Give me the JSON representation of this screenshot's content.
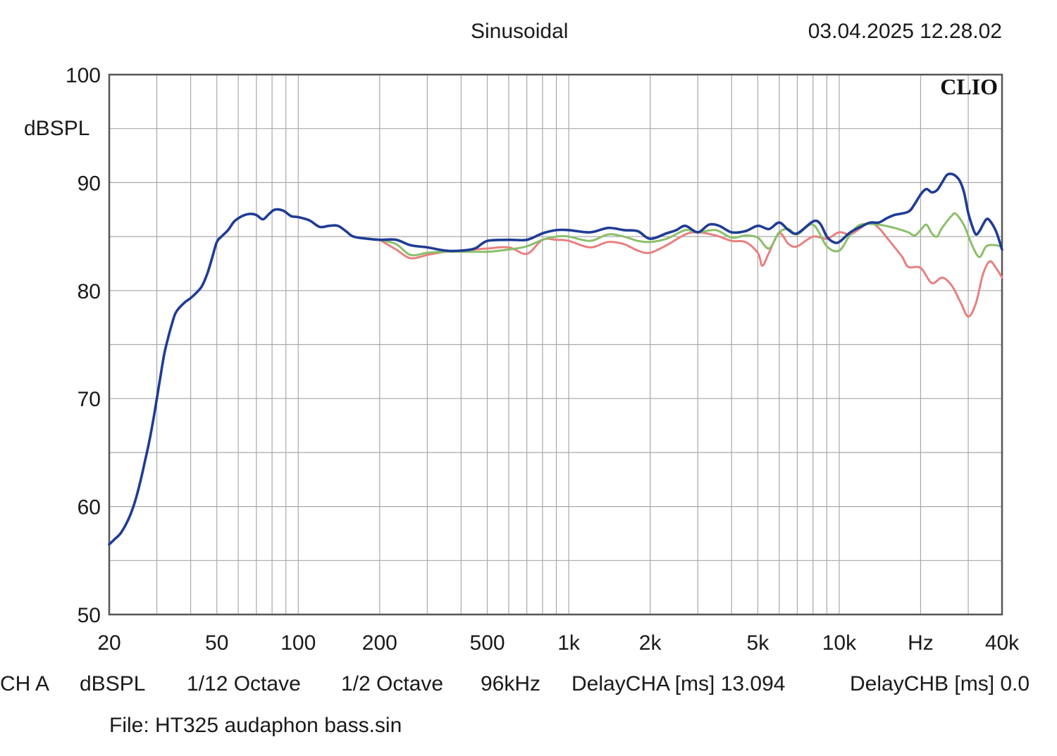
{
  "header": {
    "title": "Sinusoidal",
    "datetime": "03.04.2025 12.28.02"
  },
  "footer": {
    "channel": "CH A",
    "unit": "dBSPL",
    "smoothing": "1/12 Octave",
    "resolution": "1/2 Octave",
    "sample_rate": "96kHz",
    "delay_cha": "DelayCHA [ms] 13.094",
    "delay_chb": "DelayCHB [ms] 0.0",
    "file": "File: HT325 audaphon bass.sin"
  },
  "brand": "CLIO",
  "chart_data": {
    "type": "line",
    "title": "Sinusoidal",
    "xlabel": "Hz",
    "ylabel": "dBSPL",
    "xscale": "log",
    "xlim": [
      20,
      40000
    ],
    "ylim": [
      50,
      100
    ],
    "grid": true,
    "x_ticks": [
      {
        "v": 20,
        "label": "20"
      },
      {
        "v": 50,
        "label": "50"
      },
      {
        "v": 100,
        "label": "100"
      },
      {
        "v": 200,
        "label": "200"
      },
      {
        "v": 500,
        "label": "500"
      },
      {
        "v": 1000,
        "label": "1k"
      },
      {
        "v": 2000,
        "label": "2k"
      },
      {
        "v": 5000,
        "label": "5k"
      },
      {
        "v": 10000,
        "label": "10k"
      },
      {
        "v": 20000,
        "label": "Hz"
      },
      {
        "v": 40000,
        "label": "40k"
      }
    ],
    "y_ticks": [
      {
        "v": 100,
        "label": "100"
      },
      {
        "v": 90,
        "label": "90"
      },
      {
        "v": 80,
        "label": "80"
      },
      {
        "v": 70,
        "label": "70"
      },
      {
        "v": 60,
        "label": "60"
      },
      {
        "v": 50,
        "label": "50"
      }
    ],
    "series": [
      {
        "name": "red",
        "color": "#e88080",
        "points": [
          [
            200,
            84.7
          ],
          [
            230,
            83.8
          ],
          [
            260,
            83.0
          ],
          [
            300,
            83.3
          ],
          [
            350,
            83.6
          ],
          [
            400,
            83.7
          ],
          [
            500,
            83.9
          ],
          [
            600,
            84.0
          ],
          [
            700,
            83.4
          ],
          [
            800,
            84.7
          ],
          [
            900,
            84.7
          ],
          [
            1000,
            84.6
          ],
          [
            1200,
            84.0
          ],
          [
            1400,
            84.5
          ],
          [
            1600,
            84.3
          ],
          [
            1800,
            83.7
          ],
          [
            2000,
            83.5
          ],
          [
            2300,
            84.2
          ],
          [
            2700,
            85.2
          ],
          [
            3000,
            85.4
          ],
          [
            3500,
            85.1
          ],
          [
            4000,
            84.6
          ],
          [
            4500,
            84.5
          ],
          [
            5000,
            83.5
          ],
          [
            5200,
            82.3
          ],
          [
            5500,
            83.5
          ],
          [
            6000,
            85.3
          ],
          [
            6500,
            84.3
          ],
          [
            7000,
            84.1
          ],
          [
            8000,
            85.0
          ],
          [
            9000,
            84.8
          ],
          [
            10000,
            85.4
          ],
          [
            11000,
            85.2
          ],
          [
            12000,
            85.8
          ],
          [
            13000,
            86.3
          ],
          [
            14000,
            85.8
          ],
          [
            15000,
            84.9
          ],
          [
            17000,
            83.2
          ],
          [
            18000,
            82.2
          ],
          [
            20000,
            82.1
          ],
          [
            22000,
            80.7
          ],
          [
            24000,
            81.2
          ],
          [
            26000,
            80.5
          ],
          [
            28000,
            79.0
          ],
          [
            30000,
            77.6
          ],
          [
            32000,
            78.8
          ],
          [
            34000,
            81.5
          ],
          [
            36000,
            82.7
          ],
          [
            38000,
            82.1
          ],
          [
            40000,
            81.2
          ]
        ]
      },
      {
        "name": "green",
        "color": "#8bbf6a",
        "points": [
          [
            200,
            84.7
          ],
          [
            230,
            84.3
          ],
          [
            260,
            83.3
          ],
          [
            300,
            83.5
          ],
          [
            350,
            83.6
          ],
          [
            400,
            83.6
          ],
          [
            500,
            83.6
          ],
          [
            600,
            83.8
          ],
          [
            700,
            84.1
          ],
          [
            800,
            84.7
          ],
          [
            900,
            85.0
          ],
          [
            1000,
            85.0
          ],
          [
            1200,
            84.6
          ],
          [
            1400,
            85.2
          ],
          [
            1600,
            85.0
          ],
          [
            1800,
            84.6
          ],
          [
            2000,
            84.5
          ],
          [
            2300,
            84.8
          ],
          [
            2700,
            85.6
          ],
          [
            3000,
            85.4
          ],
          [
            3500,
            85.6
          ],
          [
            4000,
            84.9
          ],
          [
            4500,
            85.1
          ],
          [
            5000,
            84.9
          ],
          [
            5500,
            83.9
          ],
          [
            6000,
            85.4
          ],
          [
            6500,
            85.7
          ],
          [
            7000,
            85.2
          ],
          [
            8000,
            86.1
          ],
          [
            9000,
            84.1
          ],
          [
            10000,
            83.7
          ],
          [
            11000,
            85.2
          ],
          [
            12000,
            86.1
          ],
          [
            14000,
            86.1
          ],
          [
            16000,
            85.8
          ],
          [
            18000,
            85.4
          ],
          [
            19000,
            85.1
          ],
          [
            20000,
            85.6
          ],
          [
            21000,
            86.1
          ],
          [
            22000,
            85.3
          ],
          [
            23000,
            85.0
          ],
          [
            24000,
            85.8
          ],
          [
            26000,
            86.9
          ],
          [
            27000,
            87.1
          ],
          [
            29000,
            86.0
          ],
          [
            31000,
            84.2
          ],
          [
            33000,
            83.1
          ],
          [
            35000,
            84.1
          ],
          [
            38000,
            84.2
          ],
          [
            40000,
            84.0
          ]
        ]
      },
      {
        "name": "blue",
        "color": "#1f3c94",
        "points": [
          [
            20,
            56.5
          ],
          [
            21,
            57.0
          ],
          [
            22,
            57.5
          ],
          [
            23,
            58.3
          ],
          [
            24,
            59.3
          ],
          [
            25,
            60.6
          ],
          [
            26,
            62.2
          ],
          [
            27,
            64.0
          ],
          [
            28,
            65.8
          ],
          [
            29,
            67.8
          ],
          [
            30,
            70.0
          ],
          [
            31,
            72.2
          ],
          [
            32,
            74.2
          ],
          [
            33,
            75.6
          ],
          [
            34,
            76.8
          ],
          [
            35,
            77.8
          ],
          [
            36,
            78.3
          ],
          [
            38,
            78.9
          ],
          [
            40,
            79.3
          ],
          [
            42,
            79.8
          ],
          [
            44,
            80.4
          ],
          [
            46,
            81.5
          ],
          [
            48,
            83.0
          ],
          [
            50,
            84.5
          ],
          [
            52,
            85.0
          ],
          [
            55,
            85.6
          ],
          [
            58,
            86.4
          ],
          [
            62,
            86.9
          ],
          [
            66,
            87.1
          ],
          [
            70,
            87.0
          ],
          [
            74,
            86.6
          ],
          [
            78,
            87.1
          ],
          [
            82,
            87.5
          ],
          [
            88,
            87.4
          ],
          [
            94,
            86.9
          ],
          [
            100,
            86.8
          ],
          [
            110,
            86.5
          ],
          [
            120,
            85.9
          ],
          [
            130,
            86.0
          ],
          [
            140,
            86.0
          ],
          [
            150,
            85.5
          ],
          [
            160,
            85.0
          ],
          [
            180,
            84.8
          ],
          [
            200,
            84.7
          ],
          [
            230,
            84.7
          ],
          [
            260,
            84.2
          ],
          [
            300,
            84.0
          ],
          [
            350,
            83.7
          ],
          [
            400,
            83.7
          ],
          [
            450,
            83.9
          ],
          [
            500,
            84.6
          ],
          [
            600,
            84.7
          ],
          [
            700,
            84.7
          ],
          [
            800,
            85.3
          ],
          [
            900,
            85.6
          ],
          [
            1000,
            85.6
          ],
          [
            1200,
            85.4
          ],
          [
            1400,
            85.8
          ],
          [
            1600,
            85.6
          ],
          [
            1800,
            85.5
          ],
          [
            2000,
            84.8
          ],
          [
            2300,
            85.3
          ],
          [
            2500,
            85.6
          ],
          [
            2700,
            86.0
          ],
          [
            3000,
            85.4
          ],
          [
            3300,
            86.1
          ],
          [
            3600,
            86.0
          ],
          [
            4000,
            85.4
          ],
          [
            4500,
            85.5
          ],
          [
            5000,
            86.0
          ],
          [
            5500,
            85.7
          ],
          [
            6000,
            86.3
          ],
          [
            6500,
            85.6
          ],
          [
            7000,
            85.3
          ],
          [
            8000,
            86.4
          ],
          [
            8500,
            86.2
          ],
          [
            9000,
            85.0
          ],
          [
            9500,
            84.5
          ],
          [
            10000,
            84.5
          ],
          [
            11000,
            85.4
          ],
          [
            12000,
            85.9
          ],
          [
            13000,
            86.3
          ],
          [
            14000,
            86.3
          ],
          [
            15000,
            86.7
          ],
          [
            16000,
            87.0
          ],
          [
            18000,
            87.3
          ],
          [
            19000,
            88.0
          ],
          [
            20000,
            88.9
          ],
          [
            21000,
            89.4
          ],
          [
            22000,
            89.1
          ],
          [
            23000,
            89.3
          ],
          [
            24000,
            90.0
          ],
          [
            25000,
            90.7
          ],
          [
            26000,
            90.8
          ],
          [
            27000,
            90.6
          ],
          [
            28000,
            90.1
          ],
          [
            29000,
            89.0
          ],
          [
            30000,
            87.2
          ],
          [
            31000,
            86.0
          ],
          [
            32000,
            85.2
          ],
          [
            33000,
            85.5
          ],
          [
            34000,
            86.1
          ],
          [
            35000,
            86.6
          ],
          [
            36000,
            86.5
          ],
          [
            38000,
            85.5
          ],
          [
            40000,
            83.8
          ]
        ]
      }
    ]
  }
}
